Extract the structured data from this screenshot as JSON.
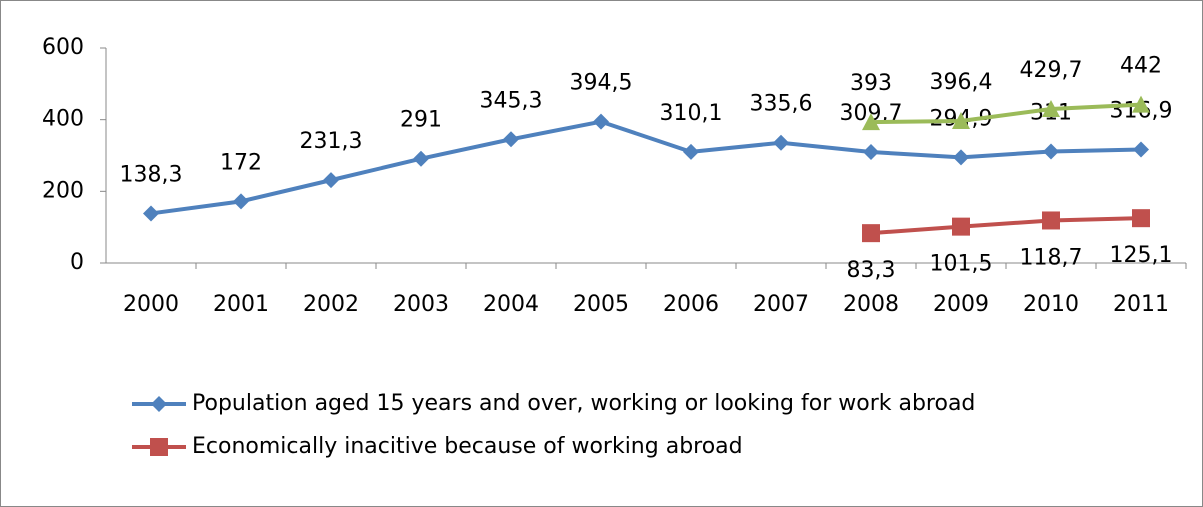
{
  "chart_data": {
    "type": "line",
    "categories": [
      "2000",
      "2001",
      "2002",
      "2003",
      "2004",
      "2005",
      "2006",
      "2007",
      "2008",
      "2009",
      "2010",
      "2011"
    ],
    "series": [
      {
        "name": "Population aged 15 years and over, working or looking for work abroad",
        "color": "#4f81bd",
        "marker": "diamond",
        "label_position": "above",
        "values": [
          138.3,
          172,
          231.3,
          291,
          345.3,
          394.5,
          310.1,
          335.6,
          309.7,
          294.9,
          311,
          316.9
        ],
        "value_labels": [
          "138,3",
          "172",
          "231,3",
          "291",
          "345,3",
          "394,5",
          "310,1",
          "335,6",
          "309,7",
          "294,9",
          "311",
          "316,9"
        ]
      },
      {
        "name": "Economically inacitive because of working abroad",
        "color": "#c0504d",
        "marker": "square",
        "label_position": "below",
        "values": [
          null,
          null,
          null,
          null,
          null,
          null,
          null,
          null,
          83.3,
          101.5,
          118.7,
          125.1
        ],
        "value_labels": [
          null,
          null,
          null,
          null,
          null,
          null,
          null,
          null,
          "83,3",
          "101,5",
          "118,7",
          "125,1"
        ]
      },
      {
        "color": "#9bbb59",
        "marker": "triangle",
        "label_position": "above",
        "values": [
          null,
          null,
          null,
          null,
          null,
          null,
          null,
          null,
          393,
          396.4,
          429.7,
          442
        ],
        "value_labels": [
          null,
          null,
          null,
          null,
          null,
          null,
          null,
          null,
          "393",
          "396,4",
          "429,7",
          "442"
        ]
      }
    ],
    "ylim": [
      0,
      600
    ],
    "yticks": [
      0,
      200,
      400,
      600
    ],
    "grid": false
  }
}
